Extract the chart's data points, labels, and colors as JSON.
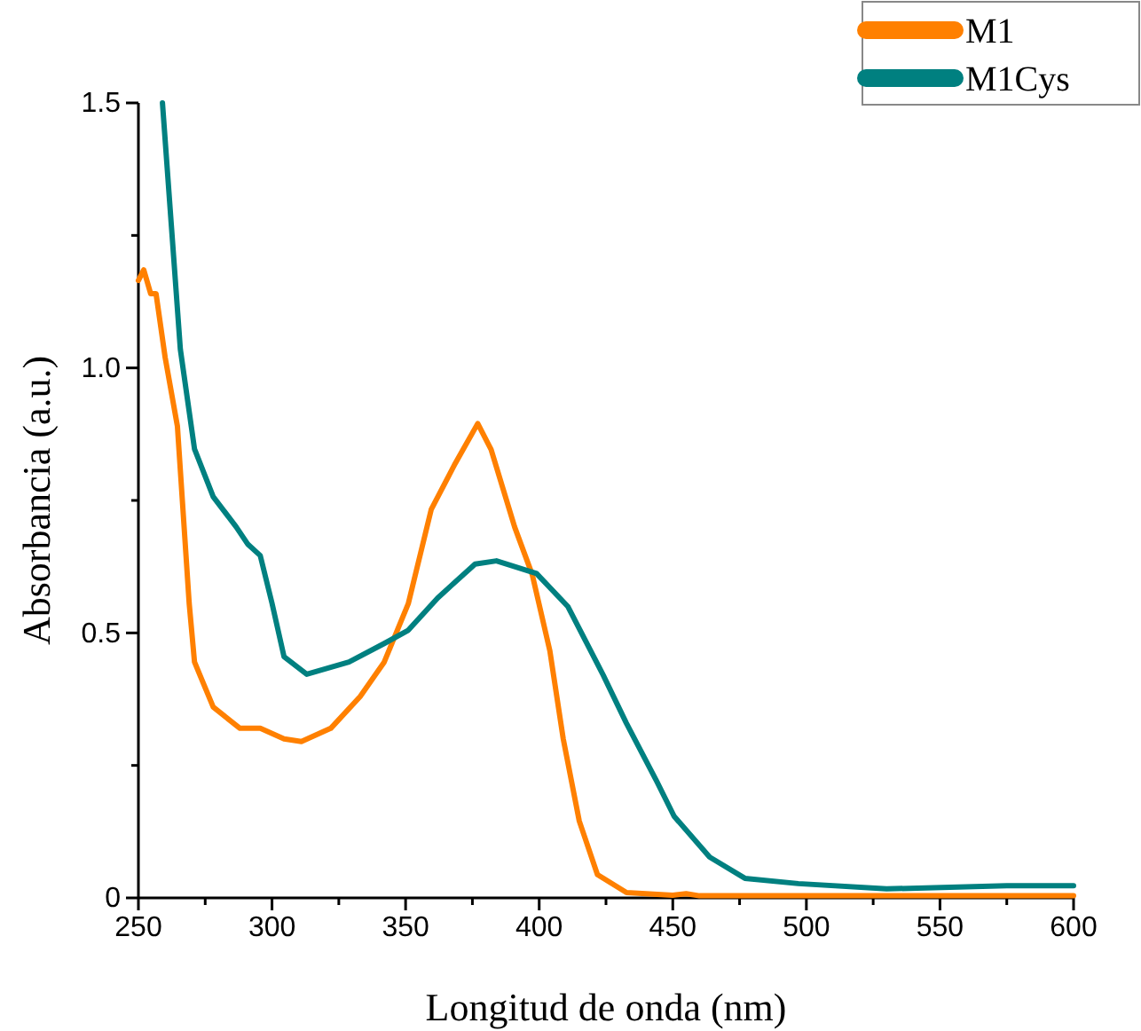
{
  "chart_data": {
    "type": "line",
    "xlabel": "Longitud de onda (nm)",
    "ylabel": "Absorbancia (a.u.)",
    "xlim": [
      250,
      600
    ],
    "ylim": [
      0,
      1.5
    ],
    "xticks": [
      250,
      300,
      350,
      400,
      450,
      500,
      550,
      600
    ],
    "yticks": [
      0.0,
      {
        "value": 0.5,
        "label": "0.5"
      },
      {
        "value": 1,
        "label": "1.0"
      },
      1.5
    ],
    "legend": "top right",
    "grid": false,
    "series": [
      {
        "name": "M1",
        "color": "#ff8000",
        "x": [
          250,
          252,
          254.6,
          256.6,
          260,
          264.6,
          269,
          271,
          278,
          288,
          295.6,
          304.5,
          311,
          322,
          333,
          342,
          351,
          359.6,
          368.6,
          377,
          382,
          390.8,
          397.4,
          404,
          409,
          415,
          421.8,
          432.7,
          450,
          455,
          460,
          500,
          550,
          600
        ],
        "values": [
          1.165,
          1.185,
          1.14,
          1.14,
          1.02,
          0.89,
          0.556,
          0.445,
          0.36,
          0.32,
          0.32,
          0.3,
          0.295,
          0.32,
          0.38,
          0.445,
          0.555,
          0.733,
          0.82,
          0.895,
          0.846,
          0.7,
          0.61,
          0.466,
          0.3,
          0.145,
          0.044,
          0.01,
          0.005,
          0.008,
          0.004,
          0.004,
          0.004,
          0.004
        ]
      },
      {
        "name": "M1Cys",
        "color": "#008080",
        "x": [
          259,
          265.7,
          271,
          278,
          286.6,
          291,
          295.6,
          300,
          304.5,
          313,
          328.8,
          342,
          351,
          362,
          376,
          384,
          399,
          410.7,
          424,
          432.6,
          444,
          450.5,
          463.8,
          477,
          497,
          530,
          575,
          600
        ],
        "values": [
          1.5,
          1.035,
          0.847,
          0.757,
          0.7,
          0.667,
          0.646,
          0.556,
          0.455,
          0.422,
          0.445,
          0.48,
          0.505,
          0.566,
          0.63,
          0.636,
          0.612,
          0.55,
          0.42,
          0.33,
          0.22,
          0.154,
          0.077,
          0.037,
          0.027,
          0.017,
          0.023,
          0.023
        ]
      }
    ]
  }
}
